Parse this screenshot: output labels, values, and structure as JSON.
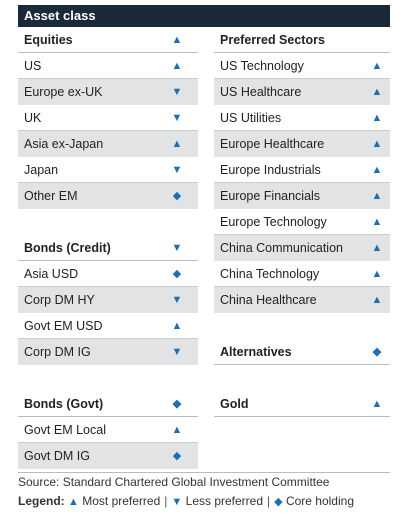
{
  "header": {
    "title": "Asset class"
  },
  "left_rows": [
    {
      "label": "Equities",
      "symbol": "▲",
      "symbol_name": "up-triangle-icon",
      "style": "sec"
    },
    {
      "label": "US",
      "symbol": "▲",
      "symbol_name": "up-triangle-icon",
      "style": "line"
    },
    {
      "label": "Europe ex-UK",
      "symbol": "▼",
      "symbol_name": "down-triangle-icon",
      "style": "shade"
    },
    {
      "label": "UK",
      "symbol": "▼",
      "symbol_name": "down-triangle-icon",
      "style": "line"
    },
    {
      "label": "Asia ex-Japan",
      "symbol": "▲",
      "symbol_name": "up-triangle-icon",
      "style": "shade"
    },
    {
      "label": "Japan",
      "symbol": "▼",
      "symbol_name": "down-triangle-icon",
      "style": "line"
    },
    {
      "label": "Other EM",
      "symbol": "◆",
      "symbol_name": "diamond-icon",
      "style": "shade"
    },
    {
      "label": "",
      "symbol": "",
      "symbol_name": "",
      "style": "blank"
    },
    {
      "label": "Bonds (Credit)",
      "symbol": "▼",
      "symbol_name": "down-triangle-icon",
      "style": "sec"
    },
    {
      "label": "Asia USD",
      "symbol": "◆",
      "symbol_name": "diamond-icon",
      "style": "line"
    },
    {
      "label": "Corp DM HY",
      "symbol": "▼",
      "symbol_name": "down-triangle-icon",
      "style": "shade"
    },
    {
      "label": "Govt EM USD",
      "symbol": "▲",
      "symbol_name": "up-triangle-icon",
      "style": "line"
    },
    {
      "label": "Corp DM IG",
      "symbol": "▼",
      "symbol_name": "down-triangle-icon",
      "style": "shade"
    },
    {
      "label": "",
      "symbol": "",
      "symbol_name": "",
      "style": "blank"
    },
    {
      "label": "Bonds (Govt)",
      "symbol": "◆",
      "symbol_name": "diamond-icon",
      "style": "sec"
    },
    {
      "label": "Govt EM Local",
      "symbol": "▲",
      "symbol_name": "up-triangle-icon",
      "style": "line"
    },
    {
      "label": "Govt DM IG",
      "symbol": "◆",
      "symbol_name": "diamond-icon",
      "style": "shade"
    }
  ],
  "right_rows": [
    {
      "label": "Preferred Sectors",
      "symbol": "",
      "symbol_name": "",
      "style": "sec"
    },
    {
      "label": "US Technology",
      "symbol": "▲",
      "symbol_name": "up-triangle-icon",
      "style": "line"
    },
    {
      "label": "US Healthcare",
      "symbol": "▲",
      "symbol_name": "up-triangle-icon",
      "style": "shade"
    },
    {
      "label": "US Utilities",
      "symbol": "▲",
      "symbol_name": "up-triangle-icon",
      "style": "line"
    },
    {
      "label": "Europe Healthcare",
      "symbol": "▲",
      "symbol_name": "up-triangle-icon",
      "style": "shade"
    },
    {
      "label": "Europe Industrials",
      "symbol": "▲",
      "symbol_name": "up-triangle-icon",
      "style": "line"
    },
    {
      "label": "Europe Financials",
      "symbol": "▲",
      "symbol_name": "up-triangle-icon",
      "style": "shade"
    },
    {
      "label": "Europe Technology",
      "symbol": "▲",
      "symbol_name": "up-triangle-icon",
      "style": "line"
    },
    {
      "label": "China Communication",
      "symbol": "▲",
      "symbol_name": "up-triangle-icon",
      "style": "shade"
    },
    {
      "label": "China Technology",
      "symbol": "▲",
      "symbol_name": "up-triangle-icon",
      "style": "line"
    },
    {
      "label": "China Healthcare",
      "symbol": "▲",
      "symbol_name": "up-triangle-icon",
      "style": "shade"
    },
    {
      "label": "",
      "symbol": "",
      "symbol_name": "",
      "style": "blank"
    },
    {
      "label": "Alternatives",
      "symbol": "◆",
      "symbol_name": "diamond-icon",
      "style": "sec"
    },
    {
      "label": "",
      "symbol": "",
      "symbol_name": "",
      "style": "blank"
    },
    {
      "label": "Gold",
      "symbol": "▲",
      "symbol_name": "up-triangle-icon",
      "style": "sec"
    }
  ],
  "footer": {
    "source": "Source: Standard Chartered Global Investment Committee",
    "legend_title": "Legend:",
    "legend_items": [
      {
        "symbol": "▲",
        "symbol_name": "up-triangle-icon",
        "label": "Most preferred"
      },
      {
        "symbol": "▼",
        "symbol_name": "down-triangle-icon",
        "label": "Less preferred"
      },
      {
        "symbol": "◆",
        "symbol_name": "diamond-icon",
        "label": "Core holding"
      }
    ],
    "separator": "|"
  },
  "colors": {
    "header_bg": "#1b2a3a",
    "accent": "#1a6fb5",
    "shade": "#e2e3e5"
  }
}
